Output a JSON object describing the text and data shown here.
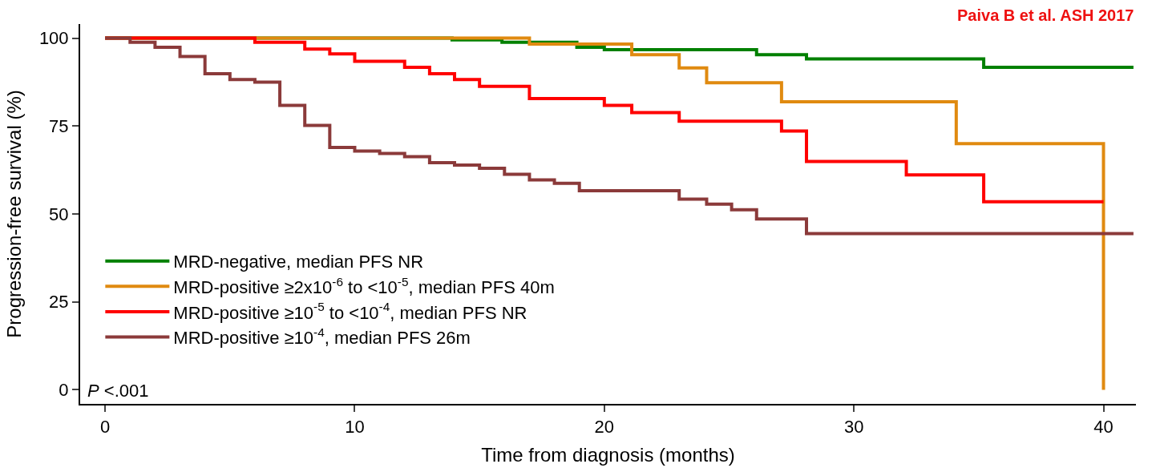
{
  "chart_data": {
    "type": "step",
    "xlabel": "Time from diagnosis (months)",
    "ylabel": "Progression-free survival (%)",
    "xlim": [
      -1,
      41.3
    ],
    "ylim": [
      -4,
      104
    ],
    "xticks": [
      0,
      10,
      20,
      30,
      40
    ],
    "yticks": [
      0,
      25,
      50,
      75,
      100
    ],
    "legend": "bottom left",
    "marker": "none",
    "line_style": "solid",
    "annotations": [
      "Paiva B et al. ASH 2017",
      "P <.001"
    ],
    "series": [
      {
        "name": "MRD-negative, median PFS NR",
        "color": "#008000",
        "x": [
          0,
          13.9,
          15.9,
          18.9,
          20,
          26.1,
          28.1,
          35.2,
          41.2
        ],
        "values": [
          100,
          99.5,
          98.8,
          97.4,
          96.7,
          95.3,
          94.1,
          91.7,
          91.7
        ]
      },
      {
        "name": "MRD-positive ≥2x10$^{-6}$ to <10$^{-5}$, median PFS 40m",
        "color": "#e08a10",
        "x": [
          0,
          17,
          21.1,
          23,
          24.1,
          27.1,
          34.1,
          40
        ],
        "values": [
          100,
          98.3,
          95.3,
          91.5,
          87.3,
          81.9,
          70,
          0
        ]
      },
      {
        "name": "MRD-positive ≥10$^{-5}$ to <10$^{-4}$, median PFS NR",
        "color": "#ff0000",
        "x": [
          0,
          6,
          8,
          9,
          10,
          12,
          13,
          14,
          15,
          17,
          20,
          21.1,
          23,
          27.1,
          28.1,
          32.1,
          35.2,
          40
        ],
        "values": [
          100,
          98.8,
          96.9,
          95.5,
          93.4,
          91.7,
          89.9,
          88.2,
          86.3,
          82.8,
          80.9,
          78.8,
          76.4,
          73.6,
          64.9,
          61.1,
          53.5,
          53.5
        ]
      },
      {
        "name": "MRD-positive ≥10$^{-4}$, median PFS 26m",
        "color": "#8b3a3a",
        "x": [
          0,
          1,
          2,
          3,
          4,
          5,
          6,
          7,
          8,
          9,
          10,
          11,
          12,
          13,
          14,
          15,
          16,
          17,
          18,
          19,
          23,
          24.1,
          25.1,
          26.1,
          28.1,
          41.2
        ],
        "values": [
          100,
          98.8,
          97.4,
          94.8,
          89.9,
          88.2,
          87.5,
          80.9,
          75.2,
          68.9,
          67.9,
          67.2,
          66.3,
          64.6,
          63.9,
          63,
          61.3,
          59.7,
          58.7,
          56.6,
          54.2,
          52.8,
          51.2,
          48.6,
          44.4,
          44.4
        ]
      }
    ]
  }
}
